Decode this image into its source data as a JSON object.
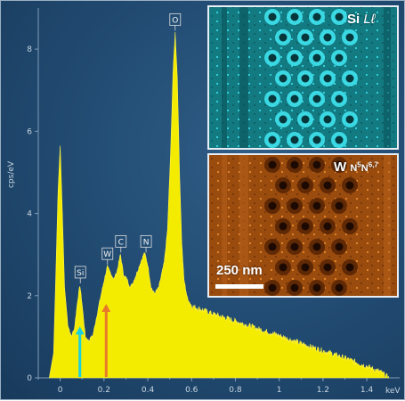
{
  "chart_data": {
    "type": "area",
    "xlabel": "keV",
    "ylabel": "cps/eV",
    "xlim": [
      -0.1,
      1.55
    ],
    "ylim": [
      0,
      9
    ],
    "x_ticks": [
      "0",
      "0.2",
      "0.4",
      "0.6",
      "0.8",
      "1",
      "1.2",
      "1.4"
    ],
    "y_ticks": [
      "0",
      "2",
      "4",
      "6",
      "8"
    ],
    "grid": false,
    "series_color": "#f4ec00",
    "spectrum": [
      [
        -0.05,
        0.0
      ],
      [
        -0.03,
        0.6
      ],
      [
        -0.02,
        2.5
      ],
      [
        -0.01,
        4.5
      ],
      [
        0.0,
        5.65
      ],
      [
        0.01,
        4.0
      ],
      [
        0.02,
        2.2
      ],
      [
        0.035,
        1.3
      ],
      [
        0.05,
        1.0
      ],
      [
        0.065,
        1.2
      ],
      [
        0.08,
        1.9
      ],
      [
        0.09,
        2.25
      ],
      [
        0.1,
        1.8
      ],
      [
        0.115,
        1.0
      ],
      [
        0.13,
        0.9
      ],
      [
        0.15,
        1.05
      ],
      [
        0.165,
        1.45
      ],
      [
        0.18,
        1.85
      ],
      [
        0.2,
        2.35
      ],
      [
        0.215,
        2.7
      ],
      [
        0.23,
        2.55
      ],
      [
        0.245,
        2.4
      ],
      [
        0.26,
        2.6
      ],
      [
        0.275,
        3.0
      ],
      [
        0.29,
        2.5
      ],
      [
        0.305,
        2.4
      ],
      [
        0.32,
        2.2
      ],
      [
        0.335,
        2.35
      ],
      [
        0.35,
        2.55
      ],
      [
        0.37,
        2.85
      ],
      [
        0.385,
        3.05
      ],
      [
        0.4,
        2.75
      ],
      [
        0.415,
        2.2
      ],
      [
        0.43,
        2.05
      ],
      [
        0.45,
        2.2
      ],
      [
        0.475,
        2.8
      ],
      [
        0.49,
        3.6
      ],
      [
        0.505,
        5.6
      ],
      [
        0.515,
        7.4
      ],
      [
        0.525,
        8.4
      ],
      [
        0.535,
        7.3
      ],
      [
        0.545,
        5.0
      ],
      [
        0.555,
        3.3
      ],
      [
        0.565,
        2.4
      ],
      [
        0.58,
        1.95
      ],
      [
        0.6,
        1.75
      ],
      [
        0.65,
        1.65
      ],
      [
        0.7,
        1.55
      ],
      [
        0.8,
        1.38
      ],
      [
        0.9,
        1.2
      ],
      [
        1.0,
        1.03
      ],
      [
        1.1,
        0.83
      ],
      [
        1.2,
        0.66
      ],
      [
        1.3,
        0.48
      ],
      [
        1.4,
        0.28
      ],
      [
        1.46,
        0.15
      ],
      [
        1.5,
        0.0
      ]
    ],
    "peaks": [
      {
        "label": "Si",
        "x": 0.092,
        "y": 2.3
      },
      {
        "label": "W",
        "x": 0.216,
        "y": 2.75
      },
      {
        "label": "C",
        "x": 0.277,
        "y": 3.05
      },
      {
        "label": "N",
        "x": 0.392,
        "y": 3.05
      },
      {
        "label": "O",
        "x": 0.525,
        "y": 8.45
      }
    ],
    "arrows": [
      {
        "x": 0.09,
        "color": "#19d0e0",
        "top": 1.25
      },
      {
        "x": 0.21,
        "color": "#e8782a",
        "top": 1.8
      }
    ]
  },
  "insets": {
    "top": {
      "element": "Si",
      "line": "Lℓ",
      "color": "#1fb8c4"
    },
    "bottom": {
      "element": "W",
      "line_parts": [
        "N",
        "5",
        "N",
        "6,7"
      ],
      "color": "#d8701c"
    },
    "scale_bar": {
      "label": "250 nm"
    }
  }
}
